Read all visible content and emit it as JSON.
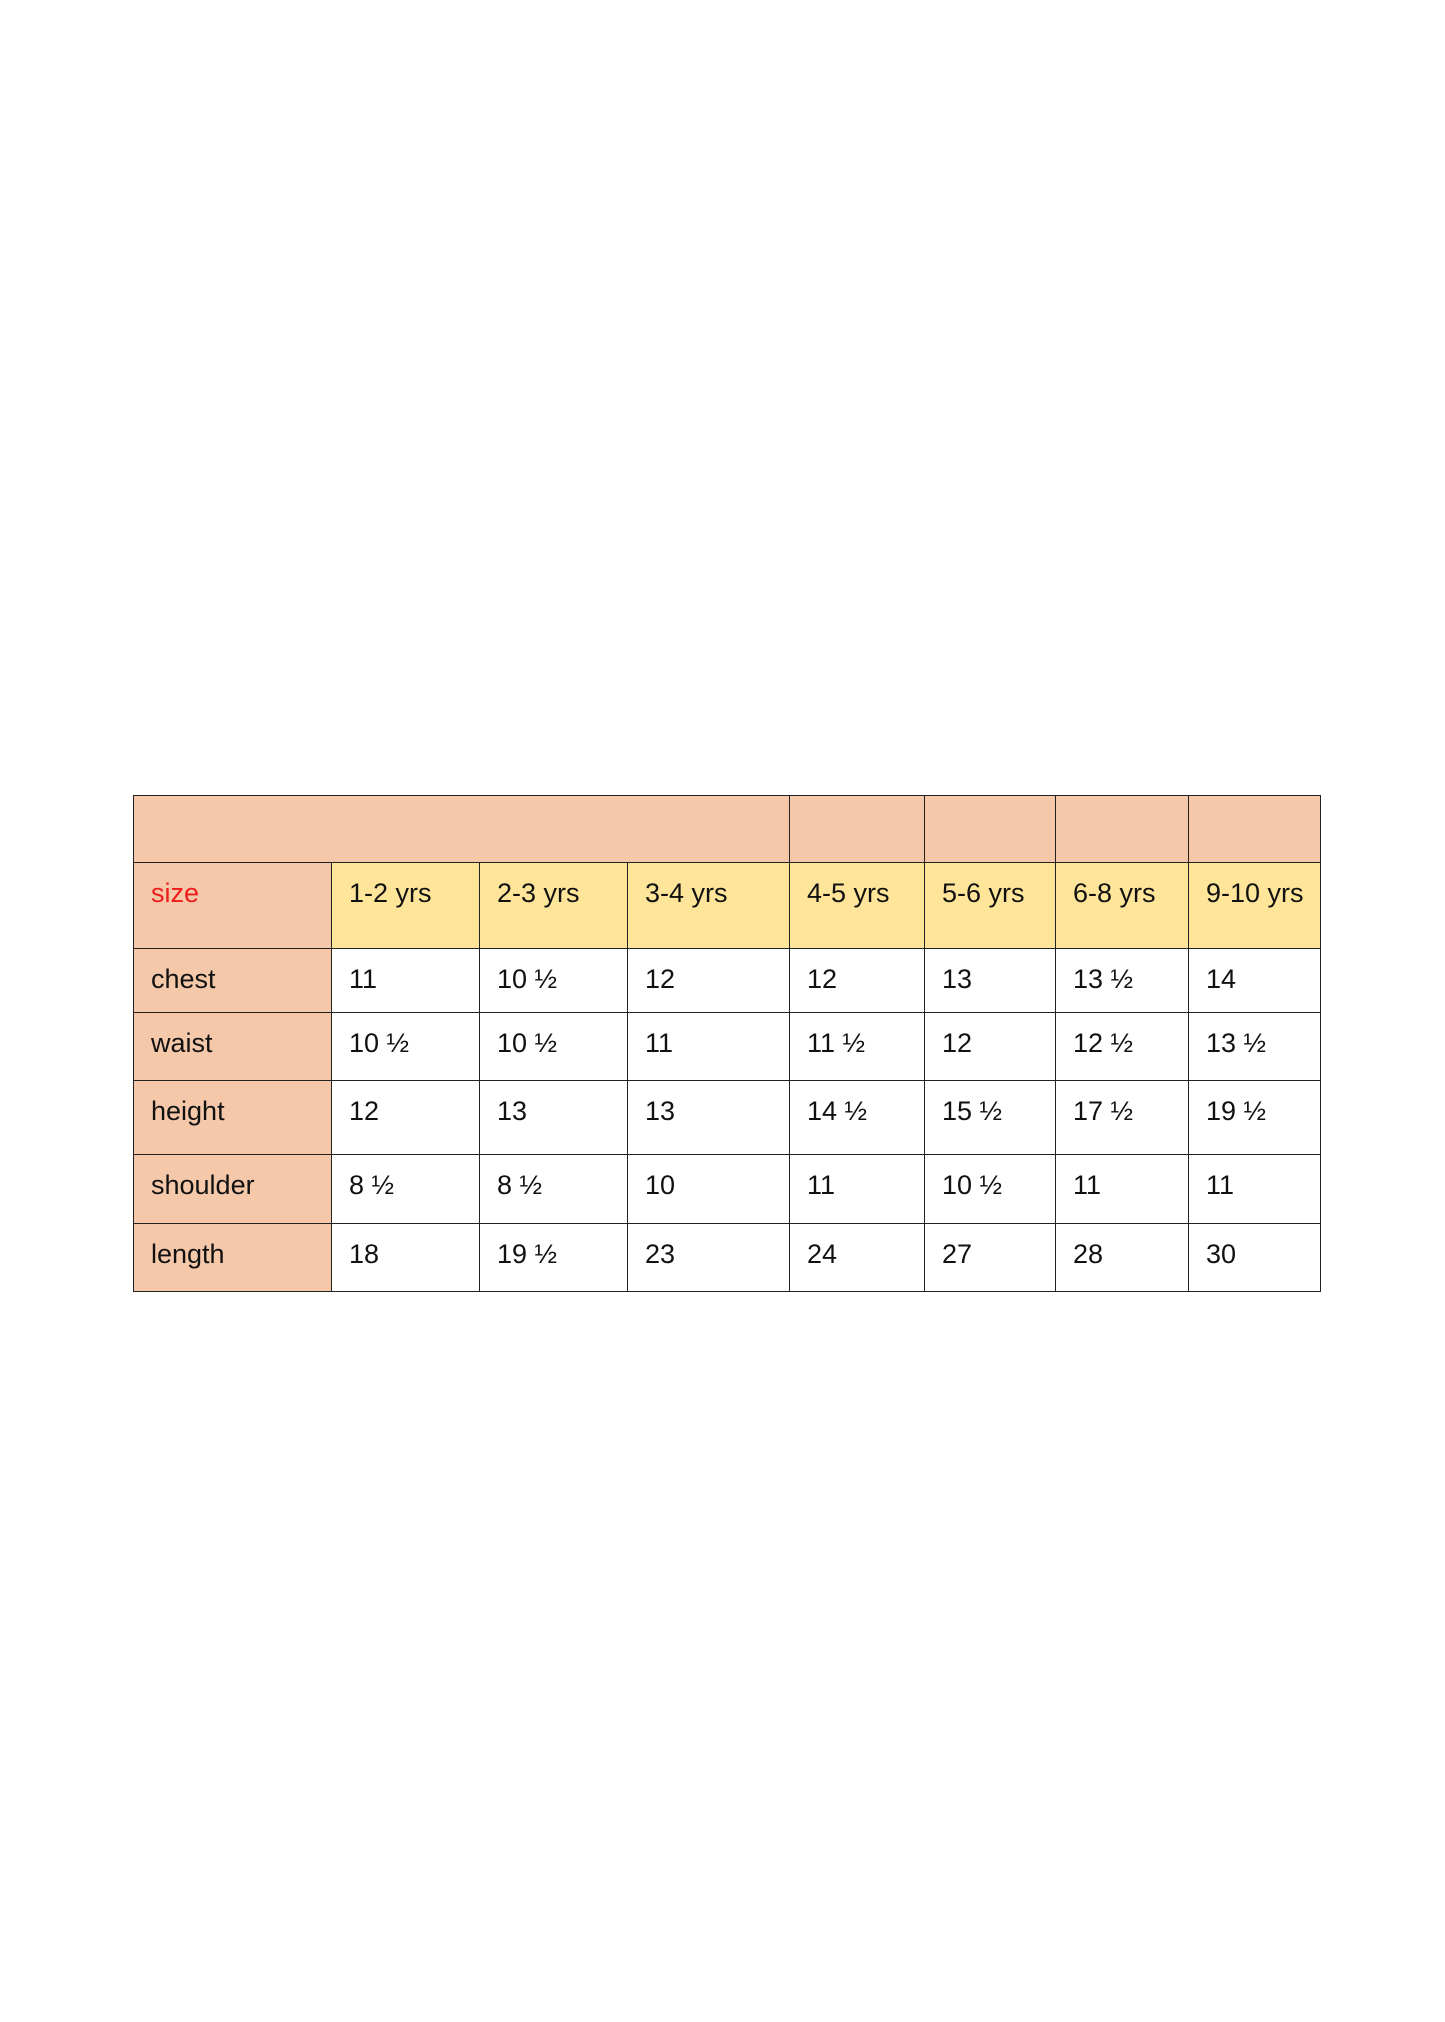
{
  "colors": {
    "row_header_bg": "#f5c8a9",
    "size_header_bg": "#ffe59a",
    "size_label_text": "#ee1c1c"
  },
  "table": {
    "size_label": "size",
    "sizes": [
      "1-2 yrs",
      "2-3 yrs",
      "3-4 yrs",
      "4-5 yrs",
      "5-6 yrs",
      "6-8 yrs",
      "9-10 yrs"
    ],
    "rows": [
      {
        "label": "chest",
        "values": [
          "11",
          "10 ½",
          "12",
          "12",
          "13",
          "13 ½",
          "14"
        ]
      },
      {
        "label": "waist",
        "values": [
          "10 ½",
          "10 ½",
          "11",
          "11 ½",
          "12",
          "12 ½",
          "13 ½"
        ]
      },
      {
        "label": "height",
        "values": [
          "12",
          "13",
          "13",
          "14 ½",
          "15 ½",
          "17 ½",
          "19 ½"
        ]
      },
      {
        "label": "shoulder",
        "values": [
          "8 ½",
          "8 ½",
          "10",
          "11",
          "10 ½",
          "11",
          "11"
        ]
      },
      {
        "label": "length",
        "values": [
          "18",
          "19 ½",
          "23",
          "24",
          "27",
          "28",
          "30"
        ]
      }
    ]
  }
}
